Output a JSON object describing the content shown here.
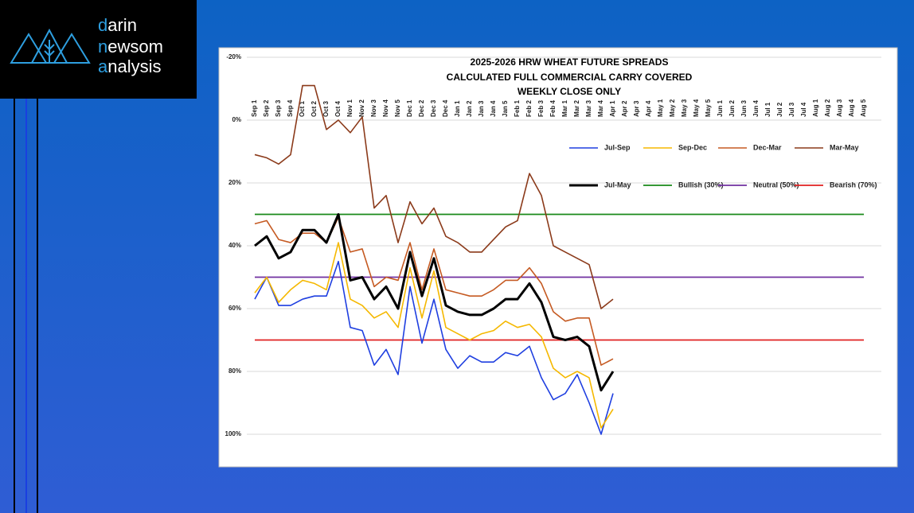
{
  "logo": [
    {
      "initial": "d",
      "rest": "arin"
    },
    {
      "initial": "n",
      "rest": "ewsom"
    },
    {
      "initial": "a",
      "rest": "nalysis"
    }
  ],
  "chart_data": {
    "type": "line",
    "title": [
      "2025-2026 HRW WHEAT FUTURE SPREADS",
      "CALCULATED FULL COMMERCIAL CARRY COVERED",
      "WEEKLY CLOSE ONLY"
    ],
    "categories": [
      "Sep 1",
      "Sep 2",
      "Sep 3",
      "Sep 4",
      "Oct 1",
      "Oct 2",
      "Oct 3",
      "Oct 4",
      "Nov 1",
      "Nov 2",
      "Nov 3",
      "Nov 4",
      "Nov 5",
      "Dec 1",
      "Dec 2",
      "Dec 3",
      "Dec 4",
      "Jan 1",
      "Jan 2",
      "Jan 3",
      "Jan 4",
      "Jan 5",
      "Feb 1",
      "Feb 2",
      "Feb 3",
      "Feb 4",
      "Mar 1",
      "Mar 2",
      "Mar 3",
      "Mar 4",
      "Apr 1",
      "Apr 2",
      "Apr 3",
      "Apr 4",
      "May 1",
      "May 2",
      "May 3",
      "May 4",
      "May 5",
      "Jun 1",
      "Jun 2",
      "Jun 3",
      "Jun 4",
      "Jul 1",
      "Jul 2",
      "Jul 3",
      "Jul 4",
      "Aug 1",
      "Aug 2",
      "Aug 3",
      "Aug 4",
      "Aug 5"
    ],
    "series": [
      {
        "name": "Jul-Sep",
        "color": "#1f3fe0",
        "width": 1.6,
        "values": [
          57,
          50,
          59,
          59,
          57,
          56,
          56,
          45,
          66,
          67,
          78,
          73,
          81,
          53,
          71,
          57,
          73,
          79,
          75,
          77,
          77,
          74,
          75,
          72,
          82,
          89,
          87,
          81,
          90,
          100,
          87,
          null,
          null,
          null,
          null,
          null,
          null,
          null,
          null,
          null,
          null,
          null,
          null,
          null,
          null,
          null,
          null,
          null,
          null,
          null,
          null,
          null
        ]
      },
      {
        "name": "Sep-Dec",
        "color": "#f5b800",
        "width": 1.6,
        "values": [
          55,
          50,
          58,
          54,
          51,
          52,
          54,
          39,
          57,
          59,
          63,
          61,
          66,
          47,
          63,
          48,
          66,
          68,
          70,
          68,
          67,
          64,
          66,
          65,
          69,
          79,
          82,
          80,
          82,
          98,
          92,
          null,
          null,
          null,
          null,
          null,
          null,
          null,
          null,
          null,
          null,
          null,
          null,
          null,
          null,
          null,
          null,
          null,
          null,
          null,
          null,
          null
        ]
      },
      {
        "name": "Dec-Mar",
        "color": "#c55a22",
        "width": 1.6,
        "values": [
          33,
          32,
          38,
          39,
          36,
          36,
          39,
          31,
          42,
          41,
          53,
          50,
          51,
          39,
          54,
          41,
          54,
          55,
          56,
          56,
          54,
          51,
          51,
          47,
          52,
          61,
          64,
          63,
          63,
          78,
          76,
          null,
          null,
          null,
          null,
          null,
          null,
          null,
          null,
          null,
          null,
          null,
          null,
          null,
          null,
          null,
          null,
          null,
          null,
          null,
          null,
          null
        ]
      },
      {
        "name": "Mar-May",
        "color": "#8b3a1a",
        "width": 1.6,
        "values": [
          11,
          12,
          14,
          11,
          -11,
          -11,
          3,
          0,
          4,
          -1,
          28,
          24,
          39,
          26,
          33,
          28,
          37,
          39,
          42,
          42,
          38,
          34,
          32,
          17,
          24,
          40,
          42,
          44,
          46,
          60,
          57,
          null,
          null,
          null,
          null,
          null,
          null,
          null,
          null,
          null,
          null,
          null,
          null,
          null,
          null,
          null,
          null,
          null,
          null,
          null,
          null,
          null
        ]
      },
      {
        "name": "Jul-May",
        "color": "#000000",
        "width": 3,
        "values": [
          40,
          37,
          44,
          42,
          35,
          35,
          39,
          30,
          51,
          50,
          57,
          53,
          60,
          42,
          56,
          44,
          59,
          61,
          62,
          62,
          60,
          57,
          57,
          52,
          58,
          69,
          70,
          69,
          72,
          86,
          80,
          null,
          null,
          null,
          null,
          null,
          null,
          null,
          null,
          null,
          null,
          null,
          null,
          null,
          null,
          null,
          null,
          null,
          null,
          null,
          null,
          null
        ]
      }
    ],
    "reference_lines": [
      {
        "name": "Bullish (30%)",
        "color": "#1a8a1a",
        "value": 30
      },
      {
        "name": "Neutral (50%)",
        "color": "#7030a0",
        "value": 50
      },
      {
        "name": "Bearish (70%)",
        "color": "#e02020",
        "value": 70
      }
    ],
    "ylim": [
      -20,
      100
    ],
    "y_inverted": true,
    "yticks": [
      {
        "value": -20,
        "label": "-20%"
      },
      {
        "value": 0,
        "label": "0%"
      },
      {
        "value": 20,
        "label": "20%"
      },
      {
        "value": 40,
        "label": "40%"
      },
      {
        "value": 60,
        "label": "60%"
      },
      {
        "value": 80,
        "label": "80%"
      },
      {
        "value": 100,
        "label": "100%"
      }
    ],
    "grid": true
  }
}
